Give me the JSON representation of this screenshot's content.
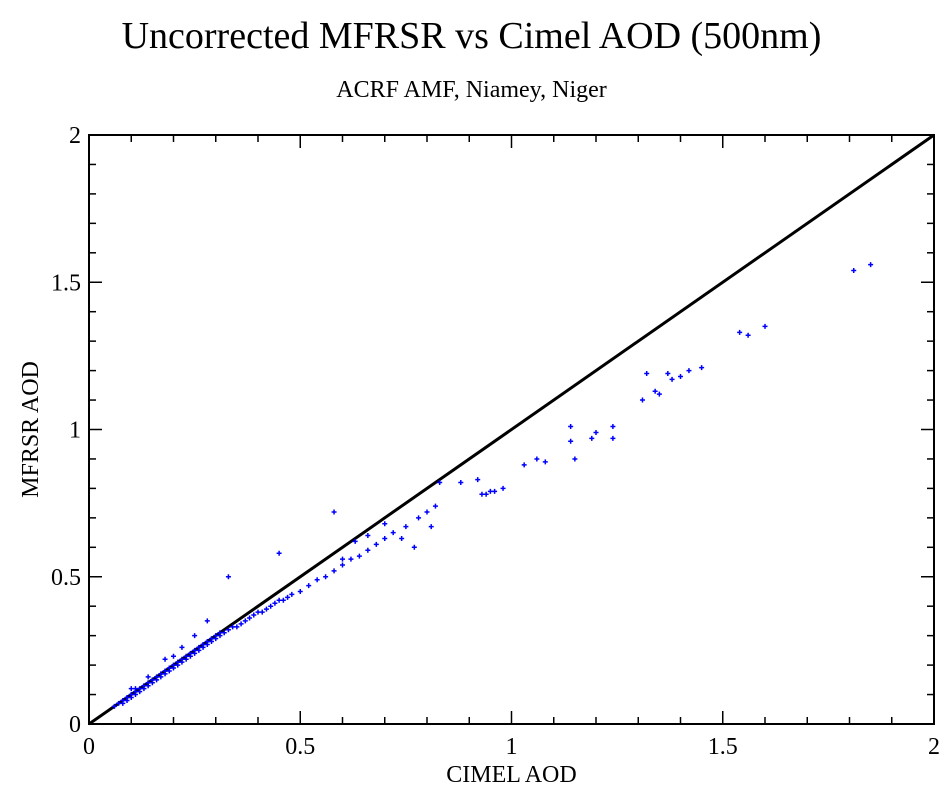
{
  "chart_data": {
    "type": "scatter",
    "title": "Uncorrected MFRSR vs Cimel AOD (500nm)",
    "subtitle": "ACRF AMF, Niamey, Niger",
    "xlabel": "CIMEL AOD",
    "ylabel": "MFRSR AOD",
    "xlim": [
      0,
      2
    ],
    "ylim": [
      0,
      2
    ],
    "x_ticks": [
      0,
      0.5,
      1,
      1.5,
      2
    ],
    "y_ticks": [
      0,
      0.5,
      1,
      1.5,
      2
    ],
    "x_tick_labels": [
      "0",
      "0.5",
      "1",
      "1.5",
      "2"
    ],
    "y_tick_labels": [
      "0",
      "0.5",
      "1",
      "1.5",
      "2"
    ],
    "grid": false,
    "series": [
      {
        "marker": "plus",
        "color": "#0000ff",
        "x": [
          0.06,
          0.07,
          0.08,
          0.08,
          0.09,
          0.09,
          0.1,
          0.1,
          0.11,
          0.11,
          0.12,
          0.12,
          0.13,
          0.13,
          0.14,
          0.14,
          0.15,
          0.15,
          0.16,
          0.16,
          0.17,
          0.17,
          0.18,
          0.18,
          0.19,
          0.19,
          0.2,
          0.2,
          0.21,
          0.21,
          0.22,
          0.22,
          0.23,
          0.23,
          0.24,
          0.24,
          0.25,
          0.25,
          0.26,
          0.26,
          0.27,
          0.27,
          0.28,
          0.28,
          0.29,
          0.29,
          0.3,
          0.3,
          0.31,
          0.31,
          0.32,
          0.33,
          0.34,
          0.35,
          0.36,
          0.37,
          0.38,
          0.39,
          0.4,
          0.41,
          0.42,
          0.43,
          0.44,
          0.45,
          0.46,
          0.47,
          0.48,
          0.5,
          0.52,
          0.54,
          0.56,
          0.58,
          0.6,
          0.62,
          0.64,
          0.66,
          0.68,
          0.7,
          0.72,
          0.75,
          0.78,
          0.8,
          0.82,
          0.1,
          0.11,
          0.14,
          0.18,
          0.2,
          0.22,
          0.25,
          0.28,
          0.33,
          0.45,
          0.58,
          0.6,
          0.63,
          0.66,
          0.7,
          0.74,
          0.77,
          0.81,
          0.83,
          0.88,
          0.92,
          0.93,
          0.94,
          0.95,
          0.96,
          0.98,
          1.03,
          1.06,
          1.08,
          1.14,
          1.14,
          1.15,
          1.19,
          1.2,
          1.24,
          1.24,
          1.31,
          1.32,
          1.34,
          1.35,
          1.37,
          1.38,
          1.4,
          1.42,
          1.45,
          1.54,
          1.56,
          1.6,
          1.81,
          1.85
        ],
        "y": [
          0.06,
          0.07,
          0.07,
          0.08,
          0.08,
          0.09,
          0.09,
          0.1,
          0.1,
          0.11,
          0.11,
          0.12,
          0.12,
          0.13,
          0.13,
          0.14,
          0.14,
          0.15,
          0.15,
          0.16,
          0.16,
          0.17,
          0.17,
          0.18,
          0.18,
          0.19,
          0.19,
          0.2,
          0.2,
          0.21,
          0.21,
          0.22,
          0.22,
          0.23,
          0.23,
          0.24,
          0.24,
          0.25,
          0.25,
          0.26,
          0.26,
          0.27,
          0.27,
          0.28,
          0.28,
          0.29,
          0.29,
          0.3,
          0.3,
          0.31,
          0.31,
          0.32,
          0.33,
          0.33,
          0.34,
          0.35,
          0.36,
          0.37,
          0.38,
          0.38,
          0.39,
          0.4,
          0.41,
          0.42,
          0.42,
          0.43,
          0.44,
          0.45,
          0.47,
          0.49,
          0.5,
          0.52,
          0.54,
          0.56,
          0.57,
          0.59,
          0.61,
          0.63,
          0.65,
          0.67,
          0.7,
          0.72,
          0.74,
          0.12,
          0.12,
          0.16,
          0.22,
          0.23,
          0.26,
          0.3,
          0.35,
          0.5,
          0.58,
          0.72,
          0.56,
          0.62,
          0.64,
          0.68,
          0.63,
          0.6,
          0.67,
          0.82,
          0.82,
          0.83,
          0.78,
          0.78,
          0.79,
          0.79,
          0.8,
          0.88,
          0.9,
          0.89,
          1.01,
          0.96,
          0.9,
          0.97,
          0.99,
          0.97,
          1.01,
          1.1,
          1.19,
          1.13,
          1.12,
          1.19,
          1.17,
          1.18,
          1.2,
          1.21,
          1.33,
          1.32,
          1.35,
          1.54,
          1.56
        ]
      }
    ],
    "reference_line": {
      "x": [
        0,
        2
      ],
      "y": [
        0,
        2
      ],
      "color": "#000000"
    }
  }
}
